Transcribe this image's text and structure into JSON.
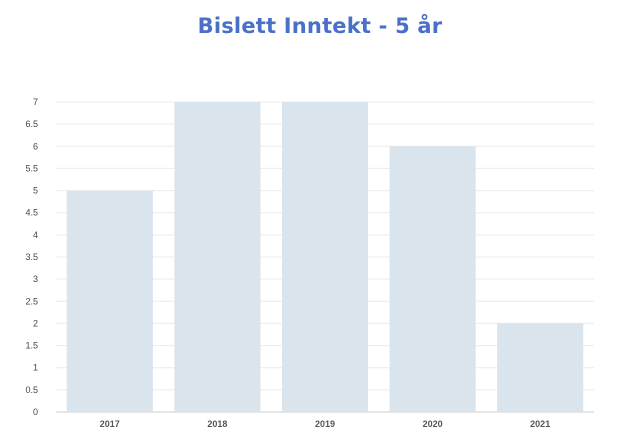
{
  "colors": {
    "title": "#4a6fc9",
    "bar": "#d9e4ed",
    "grid": "#ececec",
    "baseline": "#cccccc"
  },
  "chart_data": {
    "type": "bar",
    "title": "Bislett Inntekt - 5 år",
    "xlabel": "",
    "ylabel": "",
    "categories": [
      "2017",
      "2018",
      "2019",
      "2020",
      "2021"
    ],
    "values": [
      5,
      7,
      7,
      6,
      2
    ],
    "ylim": [
      0,
      7
    ],
    "yticks": [
      "0",
      "0.5",
      "1",
      "1.5",
      "2",
      "2.5",
      "3",
      "3.5",
      "4",
      "4.5",
      "5",
      "5.5",
      "6",
      "6.5",
      "7"
    ],
    "grid": true,
    "legend": "none"
  }
}
